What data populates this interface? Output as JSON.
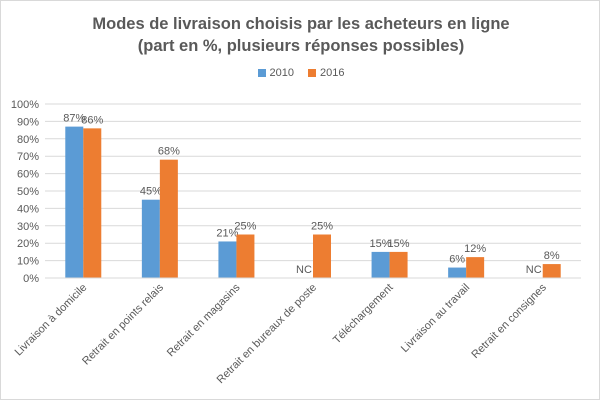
{
  "chart_title_line1": "Modes de livraison choisis par les acheteurs en ligne",
  "chart_title_line2": "(part en %, plusieurs réponses possibles)",
  "colors": {
    "s2010": "#5b9bd5",
    "s2016": "#ed7d31",
    "grid": "#d9d9d9",
    "text": "#595959"
  },
  "chart_data": {
    "type": "bar",
    "title": "Modes de livraison choisis par les acheteurs en ligne (part en %, plusieurs réponses possibles)",
    "categories": [
      "Livraison à domicile",
      "Retrait en points relais",
      "Retrait en magasins",
      "Retrait en bureaux de poste",
      "Téléchargement",
      "Livraison au travail",
      "Retrait en consignes"
    ],
    "series": [
      {
        "name": "2010",
        "values": [
          87,
          45,
          21,
          null,
          15,
          6,
          null
        ],
        "labels": [
          "87%",
          "45%",
          "21%",
          "NC",
          "15%",
          "6%",
          "NC"
        ]
      },
      {
        "name": "2016",
        "values": [
          86,
          68,
          25,
          25,
          15,
          12,
          8
        ],
        "labels": [
          "86%",
          "68%",
          "25%",
          "25%",
          "15%",
          "12%",
          "8%"
        ]
      }
    ],
    "y_ticks": [
      "0%",
      "10%",
      "20%",
      "30%",
      "40%",
      "50%",
      "60%",
      "70%",
      "80%",
      "90%",
      "100%"
    ],
    "ylim": [
      0,
      100
    ],
    "grid": true,
    "legend": "top"
  }
}
